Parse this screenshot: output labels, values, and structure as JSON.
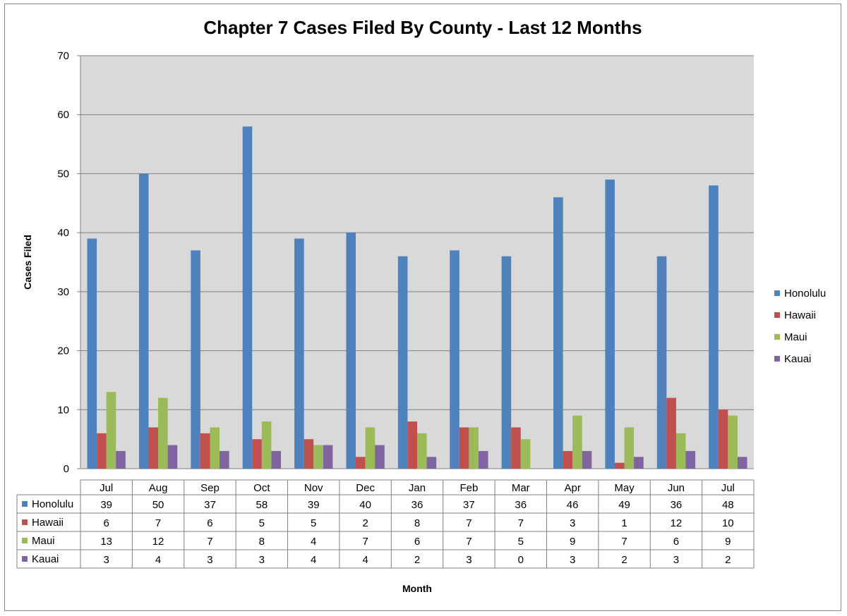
{
  "chart_data": {
    "type": "bar",
    "title": "Chapter 7 Cases Filed By County - Last 12 Months",
    "xlabel": "Month",
    "ylabel": "Cases Filed",
    "ylim": [
      0,
      70
    ],
    "yticks": [
      "0",
      "10",
      "20",
      "30",
      "40",
      "50",
      "60",
      "70"
    ],
    "grid": true,
    "legend_position": "right",
    "categories": [
      "Jul",
      "Aug",
      "Sep",
      "Oct",
      "Nov",
      "Dec",
      "Jan",
      "Feb",
      "Mar",
      "Apr",
      "May",
      "Jun",
      "Jul"
    ],
    "series": [
      {
        "name": "Honolulu",
        "color": "#4F81BD",
        "values": [
          39,
          50,
          37,
          58,
          39,
          40,
          36,
          37,
          36,
          46,
          49,
          36,
          48
        ]
      },
      {
        "name": "Hawaii",
        "color": "#C0504D",
        "values": [
          6,
          7,
          6,
          5,
          5,
          2,
          8,
          7,
          7,
          3,
          1,
          12,
          10
        ]
      },
      {
        "name": "Maui",
        "color": "#9BBB59",
        "values": [
          13,
          12,
          7,
          8,
          4,
          7,
          6,
          7,
          5,
          9,
          7,
          6,
          9
        ]
      },
      {
        "name": "Kauai",
        "color": "#8064A2",
        "values": [
          3,
          4,
          3,
          3,
          4,
          4,
          2,
          3,
          0,
          3,
          2,
          3,
          2
        ]
      }
    ],
    "plot_background": "#D9D9D9",
    "data_table": true
  }
}
